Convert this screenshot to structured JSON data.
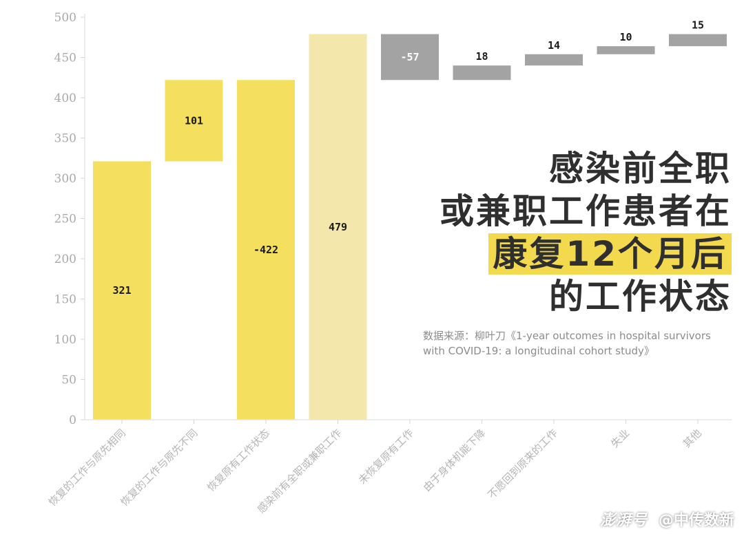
{
  "chart_data": {
    "type": "bar",
    "subtype": "waterfall",
    "categories": [
      "恢复的工作与原先相同",
      "恢复的工作与原先不同",
      "恢复原有工作状态",
      "感染前有全职或兼职工作",
      "未恢复原有工作",
      "由于身体机能下降",
      "不愿回到原来的工作",
      "失业",
      "其他"
    ],
    "bars": [
      {
        "base": 0,
        "top": 321,
        "label": "321",
        "color": "#f4df5f"
      },
      {
        "base": 321,
        "top": 422,
        "label": "101",
        "color": "#f4df5f"
      },
      {
        "base": 0,
        "top": 422,
        "label": "-422",
        "color": "#f4df5f"
      },
      {
        "base": 0,
        "top": 479,
        "label": "479",
        "color": "#f3e7ac"
      },
      {
        "base": 422,
        "top": 479,
        "label": "-57",
        "color": "#a3a3a3"
      },
      {
        "base": 422,
        "top": 440,
        "label": "18",
        "color": "#a3a3a3"
      },
      {
        "base": 440,
        "top": 454,
        "label": "14",
        "color": "#a3a3a3"
      },
      {
        "base": 454,
        "top": 464,
        "label": "10",
        "color": "#a3a3a3"
      },
      {
        "base": 464,
        "top": 479,
        "label": "15",
        "color": "#a3a3a3"
      }
    ],
    "y_ticks": [
      "0",
      "50",
      "100",
      "150",
      "200",
      "250",
      "300",
      "350",
      "400",
      "450",
      "500"
    ],
    "ylim": [
      0,
      500
    ],
    "grid": false
  },
  "title": {
    "line1": "感染前全职",
    "line2": "或兼职工作患者在",
    "line3": "康复12个月后",
    "line4": "的工作状态"
  },
  "source": "数据来源：柳叶刀《1-year outcomes in hospital survivors with COVID-19: a longitudinal cohort study》",
  "watermark": {
    "logo": "澎湃号",
    "account": "@中传数新"
  }
}
